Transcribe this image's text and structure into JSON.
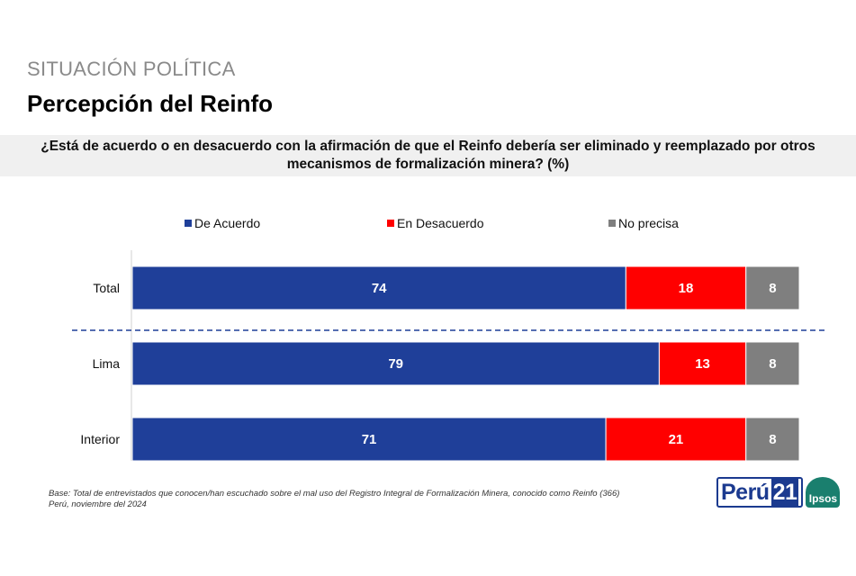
{
  "header": {
    "section": "SITUACIÓN POLÍTICA",
    "title": "Percepción del Reinfo",
    "question_line1": "¿Está de acuerdo o en desacuerdo con la afirmación de que el Reinfo debería ser eliminado y reemplazado por otros",
    "question_line2": "mecanismos de formalización minera? (%)"
  },
  "chart_data": {
    "type": "bar",
    "orientation": "horizontal",
    "stacked": true,
    "categories": [
      "Total",
      "Lima",
      "Interior"
    ],
    "series": [
      {
        "name": "De Acuerdo",
        "color": "#1f3f99",
        "values": [
          74,
          79,
          71
        ]
      },
      {
        "name": "En Desacuerdo",
        "color": "#ff0000",
        "values": [
          18,
          13,
          21
        ]
      },
      {
        "name": "No precisa",
        "color": "#7f7f7f",
        "values": [
          8,
          8,
          8
        ]
      }
    ],
    "xlim": [
      0,
      100
    ],
    "legend_position": "top",
    "separator_after": "Total"
  },
  "footer": {
    "base_note": "Base:  Total de entrevistados que conocen/han escuchado sobre el mal uso del Registro Integral de Formalización Minera, conocido como Reinfo (366)",
    "date_note": "Perú, noviembre del 2024"
  },
  "logo": {
    "brand": "Perú",
    "brand_number": "21",
    "partner": "Ipsos"
  }
}
